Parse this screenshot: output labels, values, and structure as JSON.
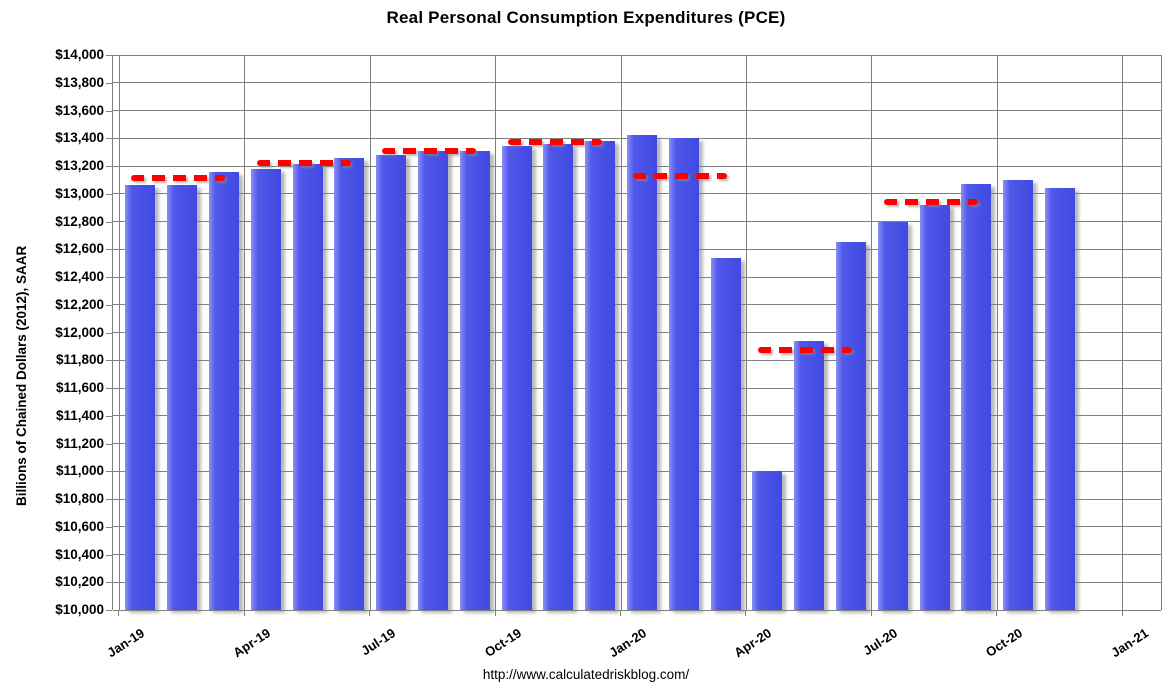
{
  "page": {
    "footer_url": "http://www.calculatedriskblog.com/"
  },
  "chart_data": {
    "type": "bar",
    "title": "Real Personal Consumption Expenditures (PCE)",
    "xlabel": "",
    "ylabel": "Billions of Chained Dollars (2012), SAAR",
    "ylim": [
      10000,
      14000
    ],
    "y_tick_step": 200,
    "grid": true,
    "legend": "none",
    "bar_color": "#4a52e8",
    "bar_highlight_color": "#8a90f5",
    "quarterly_line_color": "#ff0000",
    "gridline_color": "#808080",
    "y_tick_labels": [
      "$14,000",
      "$13,800",
      "$13,600",
      "$13,400",
      "$13,200",
      "$13,000",
      "$12,800",
      "$12,600",
      "$12,400",
      "$12,200",
      "$12,000",
      "$11,800",
      "$11,600",
      "$11,400",
      "$11,200",
      "$11,000",
      "$10,800",
      "$10,600",
      "$10,400",
      "$10,200",
      "$10,000"
    ],
    "x_tick_labels": [
      "Jan-19",
      "Apr-19",
      "Jul-19",
      "Oct-19",
      "Jan-20",
      "Apr-20",
      "Jul-20",
      "Oct-20",
      "Jan-21"
    ],
    "categories": [
      "Jan-19",
      "Feb-19",
      "Mar-19",
      "Apr-19",
      "May-19",
      "Jun-19",
      "Jul-19",
      "Aug-19",
      "Sep-19",
      "Oct-19",
      "Nov-19",
      "Dec-19",
      "Jan-20",
      "Feb-20",
      "Mar-20",
      "Apr-20",
      "May-20",
      "Jun-20",
      "Jul-20",
      "Aug-20",
      "Sep-20",
      "Oct-20",
      "Nov-20"
    ],
    "values": [
      13065,
      13060,
      13160,
      13180,
      13215,
      13255,
      13280,
      13305,
      13305,
      13345,
      13360,
      13380,
      13420,
      13400,
      12540,
      11000,
      11940,
      12650,
      12795,
      12920,
      13070,
      13100,
      13045
    ],
    "quarterly_averages": [
      {
        "quarter": "Q1 2019",
        "value": 13110,
        "start_month_index": 0
      },
      {
        "quarter": "Q2 2019",
        "value": 13220,
        "start_month_index": 3
      },
      {
        "quarter": "Q3 2019",
        "value": 13310,
        "start_month_index": 6
      },
      {
        "quarter": "Q4 2019",
        "value": 13370,
        "start_month_index": 9
      },
      {
        "quarter": "Q1 2020",
        "value": 13130,
        "start_month_index": 12
      },
      {
        "quarter": "Q2 2020",
        "value": 11875,
        "start_month_index": 15
      },
      {
        "quarter": "Q3 2020",
        "value": 12940,
        "start_month_index": 18
      }
    ]
  }
}
